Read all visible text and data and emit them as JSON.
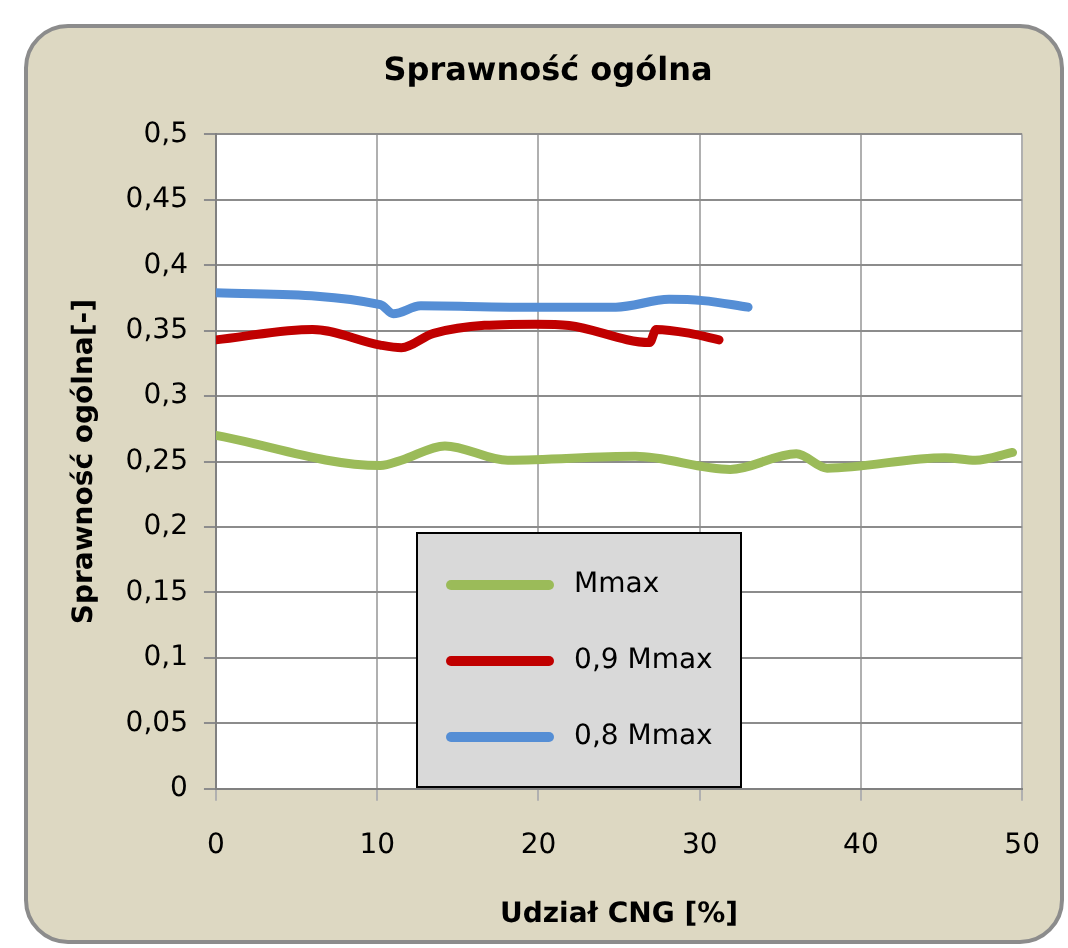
{
  "chart_data": {
    "type": "line",
    "title": "Sprawność ogólna",
    "xlabel": "Udział CNG [%]",
    "ylabel": "Sprawność ogólna[-]",
    "xlim": [
      0,
      50
    ],
    "xticks": [
      0,
      10,
      20,
      30,
      40,
      50
    ],
    "ylim": [
      0,
      0.5
    ],
    "yticks": [
      {
        "value": 0,
        "label": "0"
      },
      {
        "value": 0.05,
        "label": "0,05"
      },
      {
        "value": 0.1,
        "label": "0,1"
      },
      {
        "value": 0.15,
        "label": "0,15"
      },
      {
        "value": 0.2,
        "label": "0,2"
      },
      {
        "value": 0.25,
        "label": "0,25"
      },
      {
        "value": 0.3,
        "label": "0,3"
      },
      {
        "value": 0.35,
        "label": "0,35"
      },
      {
        "value": 0.4,
        "label": "0,4"
      },
      {
        "value": 0.45,
        "label": "0,45"
      },
      {
        "value": 0.5,
        "label": "0,5"
      }
    ],
    "grid": true,
    "legend": "bottom",
    "marker": "none",
    "line_style": "solid",
    "series": [
      {
        "name": "Mmax",
        "color": "#9bbb59",
        "x": [
          0,
          10.2,
          11.5,
          14.2,
          18.1,
          26,
          31.9,
          36,
          37.9,
          45.2,
          47.1,
          49.4
        ],
        "values": [
          0.27,
          0.247,
          0.251,
          0.262,
          0.251,
          0.254,
          0.244,
          0.256,
          0.245,
          0.253,
          0.251,
          0.257
        ]
      },
      {
        "name": "0,9 Mmax",
        "color": "#c00000",
        "x": [
          0,
          6,
          10.2,
          11.5,
          13.5,
          19.8,
          21.9,
          26.9,
          27.3,
          29.4,
          31.2
        ],
        "values": [
          0.343,
          0.351,
          0.339,
          0.337,
          0.348,
          0.355,
          0.354,
          0.341,
          0.351,
          0.348,
          0.343
        ]
      },
      {
        "name": "0,8 Mmax",
        "color": "#558ed5",
        "x": [
          0,
          10.2,
          11,
          12.7,
          18.5,
          24.8,
          28.1,
          30.2,
          33
        ],
        "values": [
          0.379,
          0.37,
          0.363,
          0.369,
          0.368,
          0.368,
          0.374,
          0.373,
          0.368
        ]
      }
    ]
  }
}
